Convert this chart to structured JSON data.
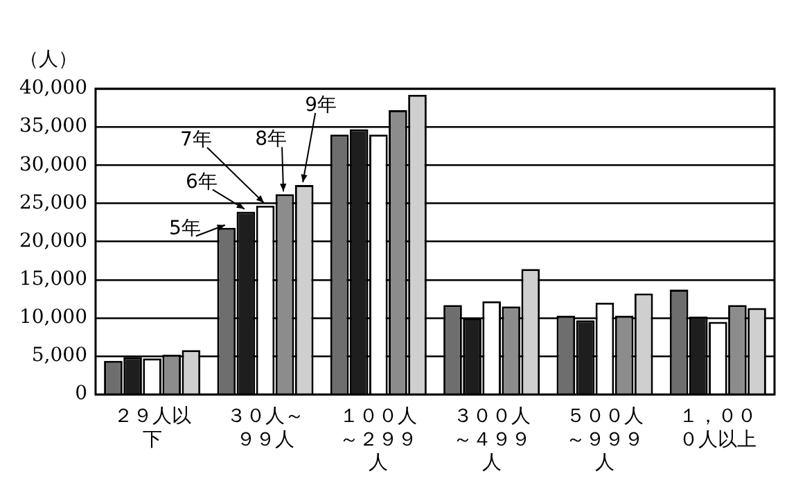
{
  "chart_data": {
    "type": "bar",
    "ylabel": "（人）",
    "categories": [
      "２９人以下",
      "３０人～９９人",
      "１００人～２９９人",
      "３００人～４９９人",
      "５００人～９９９人",
      "１，０００人以上"
    ],
    "series": [
      {
        "name": "5年",
        "color": "#6e6e6e",
        "values": [
          4400,
          21800,
          34000,
          11700,
          10300,
          13700
        ]
      },
      {
        "name": "6年",
        "color": "#1e1e1e",
        "values": [
          4900,
          23900,
          34700,
          10000,
          9700,
          10200
        ]
      },
      {
        "name": "7年",
        "color": "#ffffff",
        "values": [
          4700,
          24700,
          34000,
          12200,
          12000,
          9500
        ]
      },
      {
        "name": "8年",
        "color": "#8c8c8c",
        "values": [
          5200,
          26200,
          37200,
          11500,
          10300,
          11700
        ]
      },
      {
        "name": "9年",
        "color": "#cfcfcf",
        "values": [
          5800,
          27400,
          39200,
          16400,
          13200,
          11300
        ]
      }
    ],
    "ylim": [
      0,
      40000
    ],
    "yticks": [
      {
        "value": 0,
        "label": "0"
      },
      {
        "value": 5000,
        "label": "5,000"
      },
      {
        "value": 10000,
        "label": "10,000"
      },
      {
        "value": 15000,
        "label": "15,000"
      },
      {
        "value": 20000,
        "label": "20,000"
      },
      {
        "value": 25000,
        "label": "25,000"
      },
      {
        "value": 30000,
        "label": "30,000"
      },
      {
        "value": 35000,
        "label": "35,000"
      },
      {
        "value": 40000,
        "label": "40,000"
      }
    ],
    "grid": "y",
    "legend": false
  }
}
